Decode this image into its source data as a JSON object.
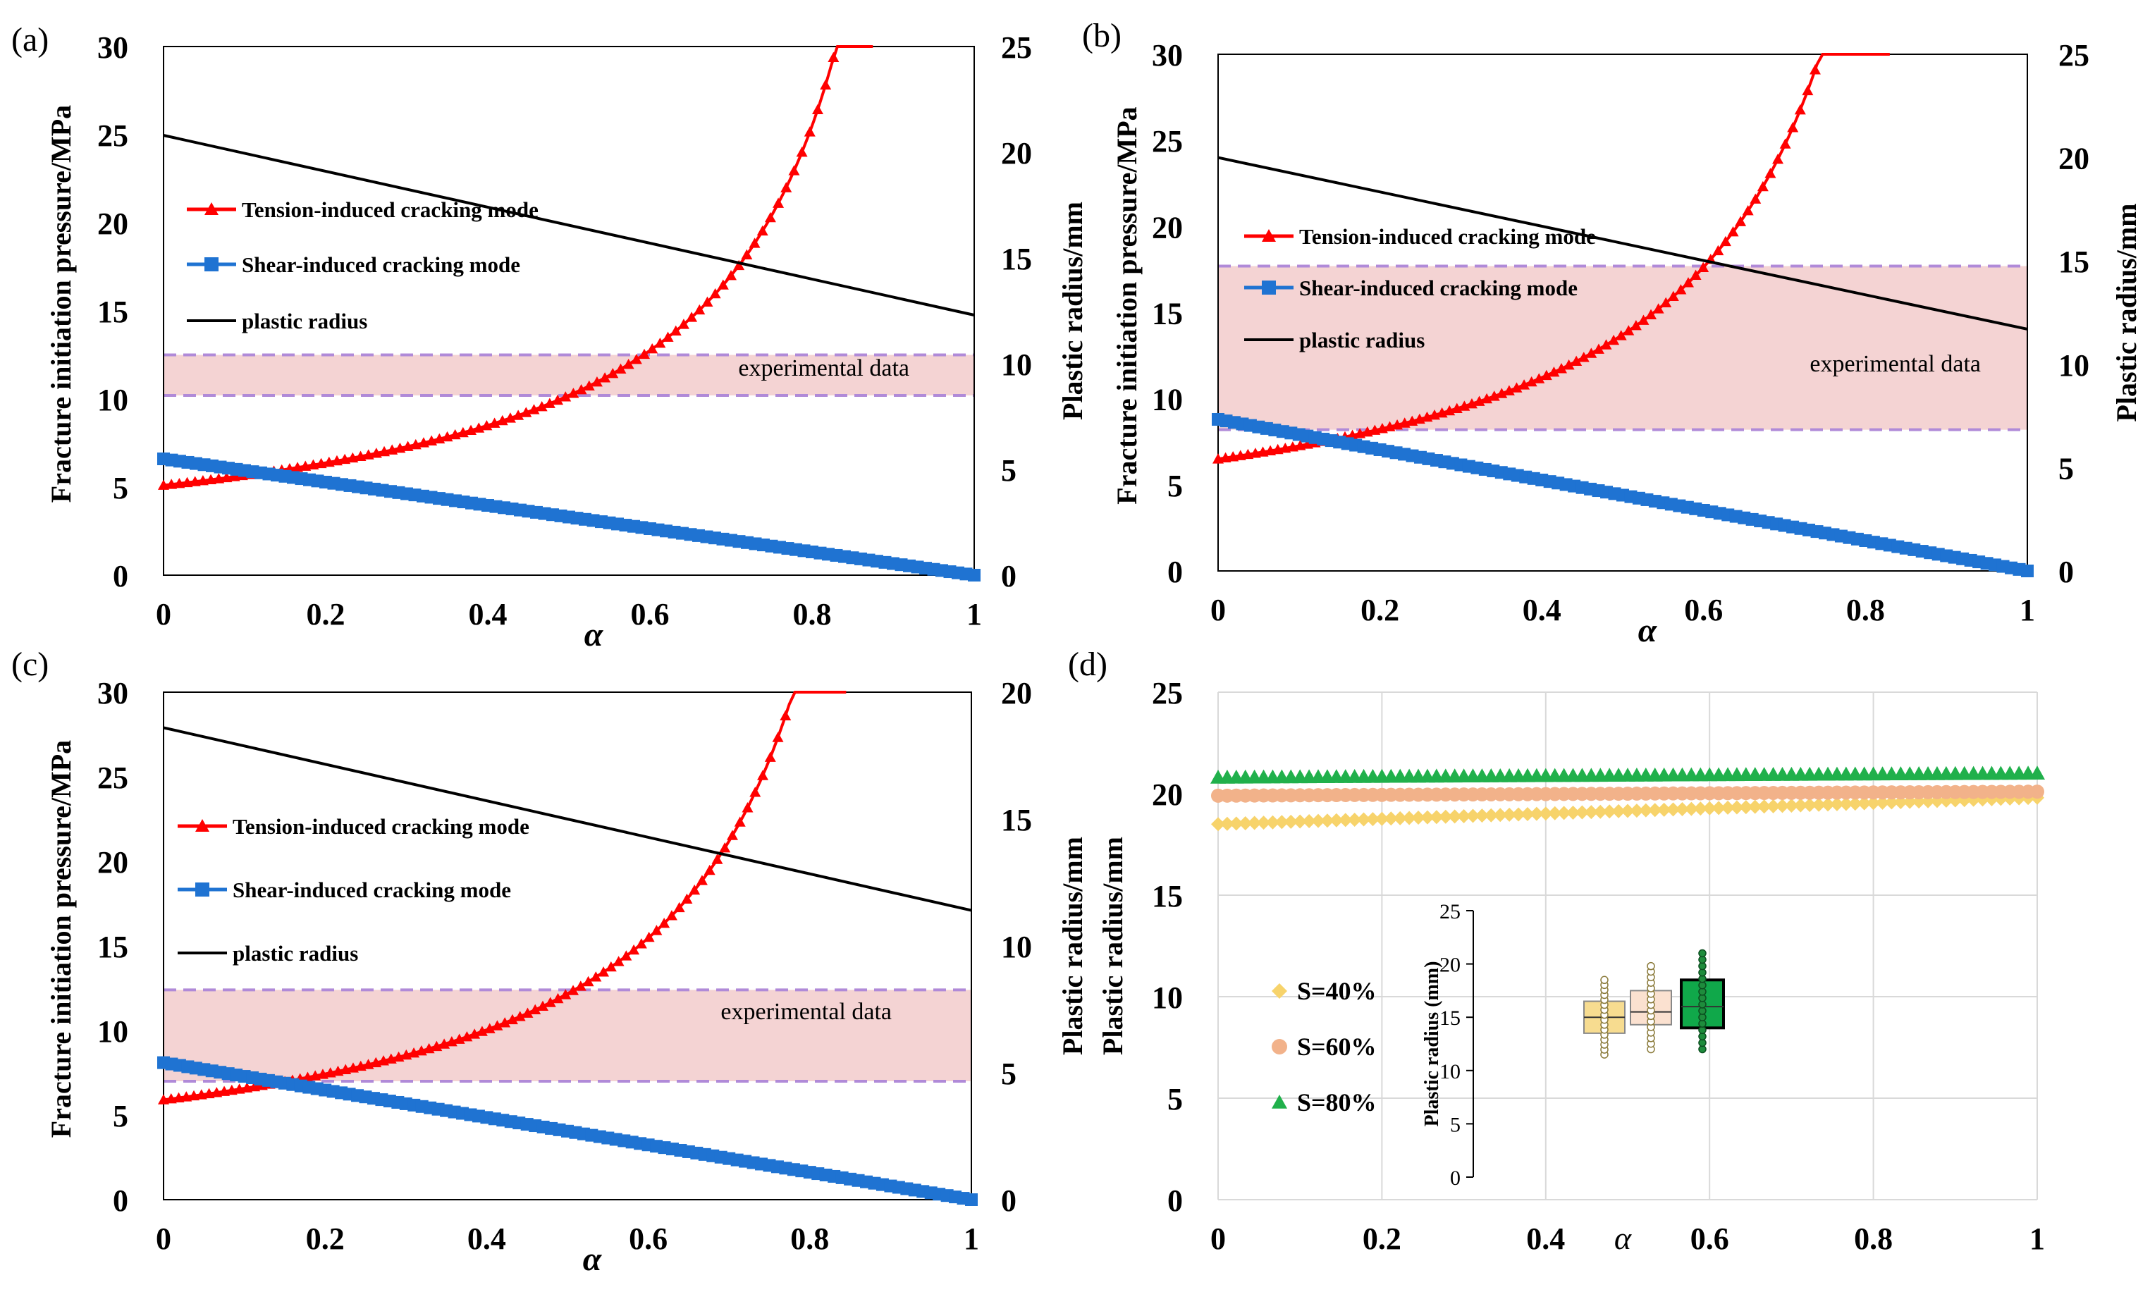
{
  "figure": {
    "panels": [
      {
        "id": "a",
        "label": "(a)"
      },
      {
        "id": "b",
        "label": "(b)"
      },
      {
        "id": "c",
        "label": "(c)"
      },
      {
        "id": "d",
        "label": "(d)"
      }
    ]
  },
  "chart_data": [
    {
      "panel": "(a)",
      "type": "line",
      "xlabel": "α",
      "ylabel": "Fracture initiation pressure/MPa",
      "y2label": "Plastic  radius/mm",
      "xlim": [
        0,
        1
      ],
      "ylim": [
        0,
        30
      ],
      "y2lim": [
        0,
        25
      ],
      "xticks": [
        0,
        0.2,
        0.4,
        0.6,
        0.8,
        1
      ],
      "yticks": [
        0,
        5,
        10,
        15,
        20,
        25,
        30
      ],
      "y2ticks": [
        0,
        5,
        10,
        15,
        20,
        25
      ],
      "band": {
        "label": "experimental data",
        "min": 10.2,
        "max": 12.5
      },
      "series": [
        {
          "name": "Tension-induced cracking mode",
          "axis": "left",
          "color": "#ff0000",
          "marker": "triangle",
          "model": "tension",
          "y0": 5.1,
          "asymptote": 1.0,
          "x_end": 0.875
        },
        {
          "name": "Shear-induced cracking mode",
          "axis": "left",
          "color": "#1f73d2",
          "marker": "square",
          "model": "linear",
          "x": [
            0,
            1
          ],
          "y": [
            6.6,
            0
          ]
        },
        {
          "name": "plastic radius",
          "axis": "right",
          "color": "#000000",
          "marker": "none",
          "model": "linear",
          "x": [
            0,
            1
          ],
          "y": [
            20.8,
            12.3
          ]
        }
      ]
    },
    {
      "panel": "(b)",
      "type": "line",
      "xlabel": "α",
      "ylabel": "Fracture initiation pressure/MPa",
      "y2label": "Plastic  radius/mm",
      "xlim": [
        0,
        1
      ],
      "ylim": [
        0,
        30
      ],
      "y2lim": [
        0,
        25
      ],
      "xticks": [
        0,
        0.2,
        0.4,
        0.6,
        0.8,
        1
      ],
      "yticks": [
        0,
        5,
        10,
        15,
        20,
        25,
        30
      ],
      "y2ticks": [
        0,
        5,
        10,
        15,
        20,
        25
      ],
      "band": {
        "label": "experimental data",
        "min": 8.2,
        "max": 17.7
      },
      "series": [
        {
          "name": "Tension-induced cracking mode",
          "axis": "left",
          "color": "#ff0000",
          "marker": "triangle",
          "model": "tension",
          "y0": 6.5,
          "asymptote": 0.95,
          "x_end": 0.83
        },
        {
          "name": "Shear-induced cracking mode",
          "axis": "left",
          "color": "#1f73d2",
          "marker": "square",
          "model": "linear",
          "x": [
            0,
            1
          ],
          "y": [
            8.8,
            0
          ]
        },
        {
          "name": "plastic radius",
          "axis": "right",
          "color": "#000000",
          "marker": "none",
          "model": "linear",
          "x": [
            0,
            1
          ],
          "y": [
            20.0,
            11.7
          ]
        }
      ]
    },
    {
      "panel": "(c)",
      "type": "line",
      "xlabel": "α",
      "ylabel": "Fracture initiation pressure/MPa",
      "y2label": "Plastic  radius/mm",
      "xlim": [
        0,
        1
      ],
      "ylim": [
        0,
        30
      ],
      "y2lim": [
        0,
        20
      ],
      "xticks": [
        0,
        0.2,
        0.4,
        0.6,
        0.8,
        1
      ],
      "yticks": [
        0,
        5,
        10,
        15,
        20,
        25,
        30
      ],
      "y2ticks": [
        0,
        5,
        10,
        15,
        20
      ],
      "band": {
        "label": "experimental data",
        "min": 7.0,
        "max": 12.4
      },
      "series": [
        {
          "name": "Tension-induced cracking mode",
          "axis": "left",
          "color": "#ff0000",
          "marker": "triangle",
          "model": "tension",
          "y0": 5.9,
          "asymptote": 0.97,
          "x_end": 0.845
        },
        {
          "name": "Shear-induced cracking mode",
          "axis": "left",
          "color": "#1f73d2",
          "marker": "square",
          "model": "linear",
          "x": [
            0,
            1
          ],
          "y": [
            8.1,
            0
          ]
        },
        {
          "name": "plastic radius",
          "axis": "right",
          "color": "#000000",
          "marker": "none",
          "model": "linear",
          "x": [
            0,
            1
          ],
          "y": [
            18.6,
            11.4
          ]
        }
      ]
    },
    {
      "panel": "(d)",
      "type": "scatter",
      "xlabel": "α",
      "ylabel": "Plastic  radius/mm",
      "xlim": [
        0,
        1
      ],
      "ylim": [
        0,
        25
      ],
      "xticks": [
        0,
        0.2,
        0.4,
        0.6,
        0.8,
        1
      ],
      "yticks": [
        0,
        5,
        10,
        15,
        20,
        25
      ],
      "grid": true,
      "series": [
        {
          "name": "S=40%",
          "color": "#f7d36b",
          "marker": "diamond",
          "x": [
            0,
            1
          ],
          "y": [
            18.5,
            19.8
          ]
        },
        {
          "name": "S=60%",
          "color": "#f2b28a",
          "marker": "circle",
          "x": [
            0,
            1
          ],
          "y": [
            19.9,
            20.1
          ]
        },
        {
          "name": "S=80%",
          "color": "#20b04b",
          "marker": "triangle",
          "x": [
            0,
            1
          ],
          "y": [
            20.8,
            21.0
          ]
        }
      ],
      "inset": {
        "type": "boxplot",
        "ylabel": "Plastic radius (mm)",
        "ylim": [
          0,
          25
        ],
        "yticks": [
          0,
          5,
          10,
          15,
          20,
          25
        ],
        "boxes": [
          {
            "name": "S=40%",
            "fill": "#f7dc90",
            "min": 11.5,
            "q1": 13.5,
            "median": 15.0,
            "q3": 16.5,
            "max": 18.5
          },
          {
            "name": "S=60%",
            "fill": "#fbe1d0",
            "min": 12.0,
            "q1": 14.3,
            "median": 15.5,
            "q3": 17.5,
            "max": 19.8
          },
          {
            "name": "S=80%",
            "fill": "#10a84a",
            "min": 12.0,
            "q1": 14.0,
            "median": 16.0,
            "q3": 18.5,
            "max": 21.0
          }
        ]
      }
    }
  ]
}
